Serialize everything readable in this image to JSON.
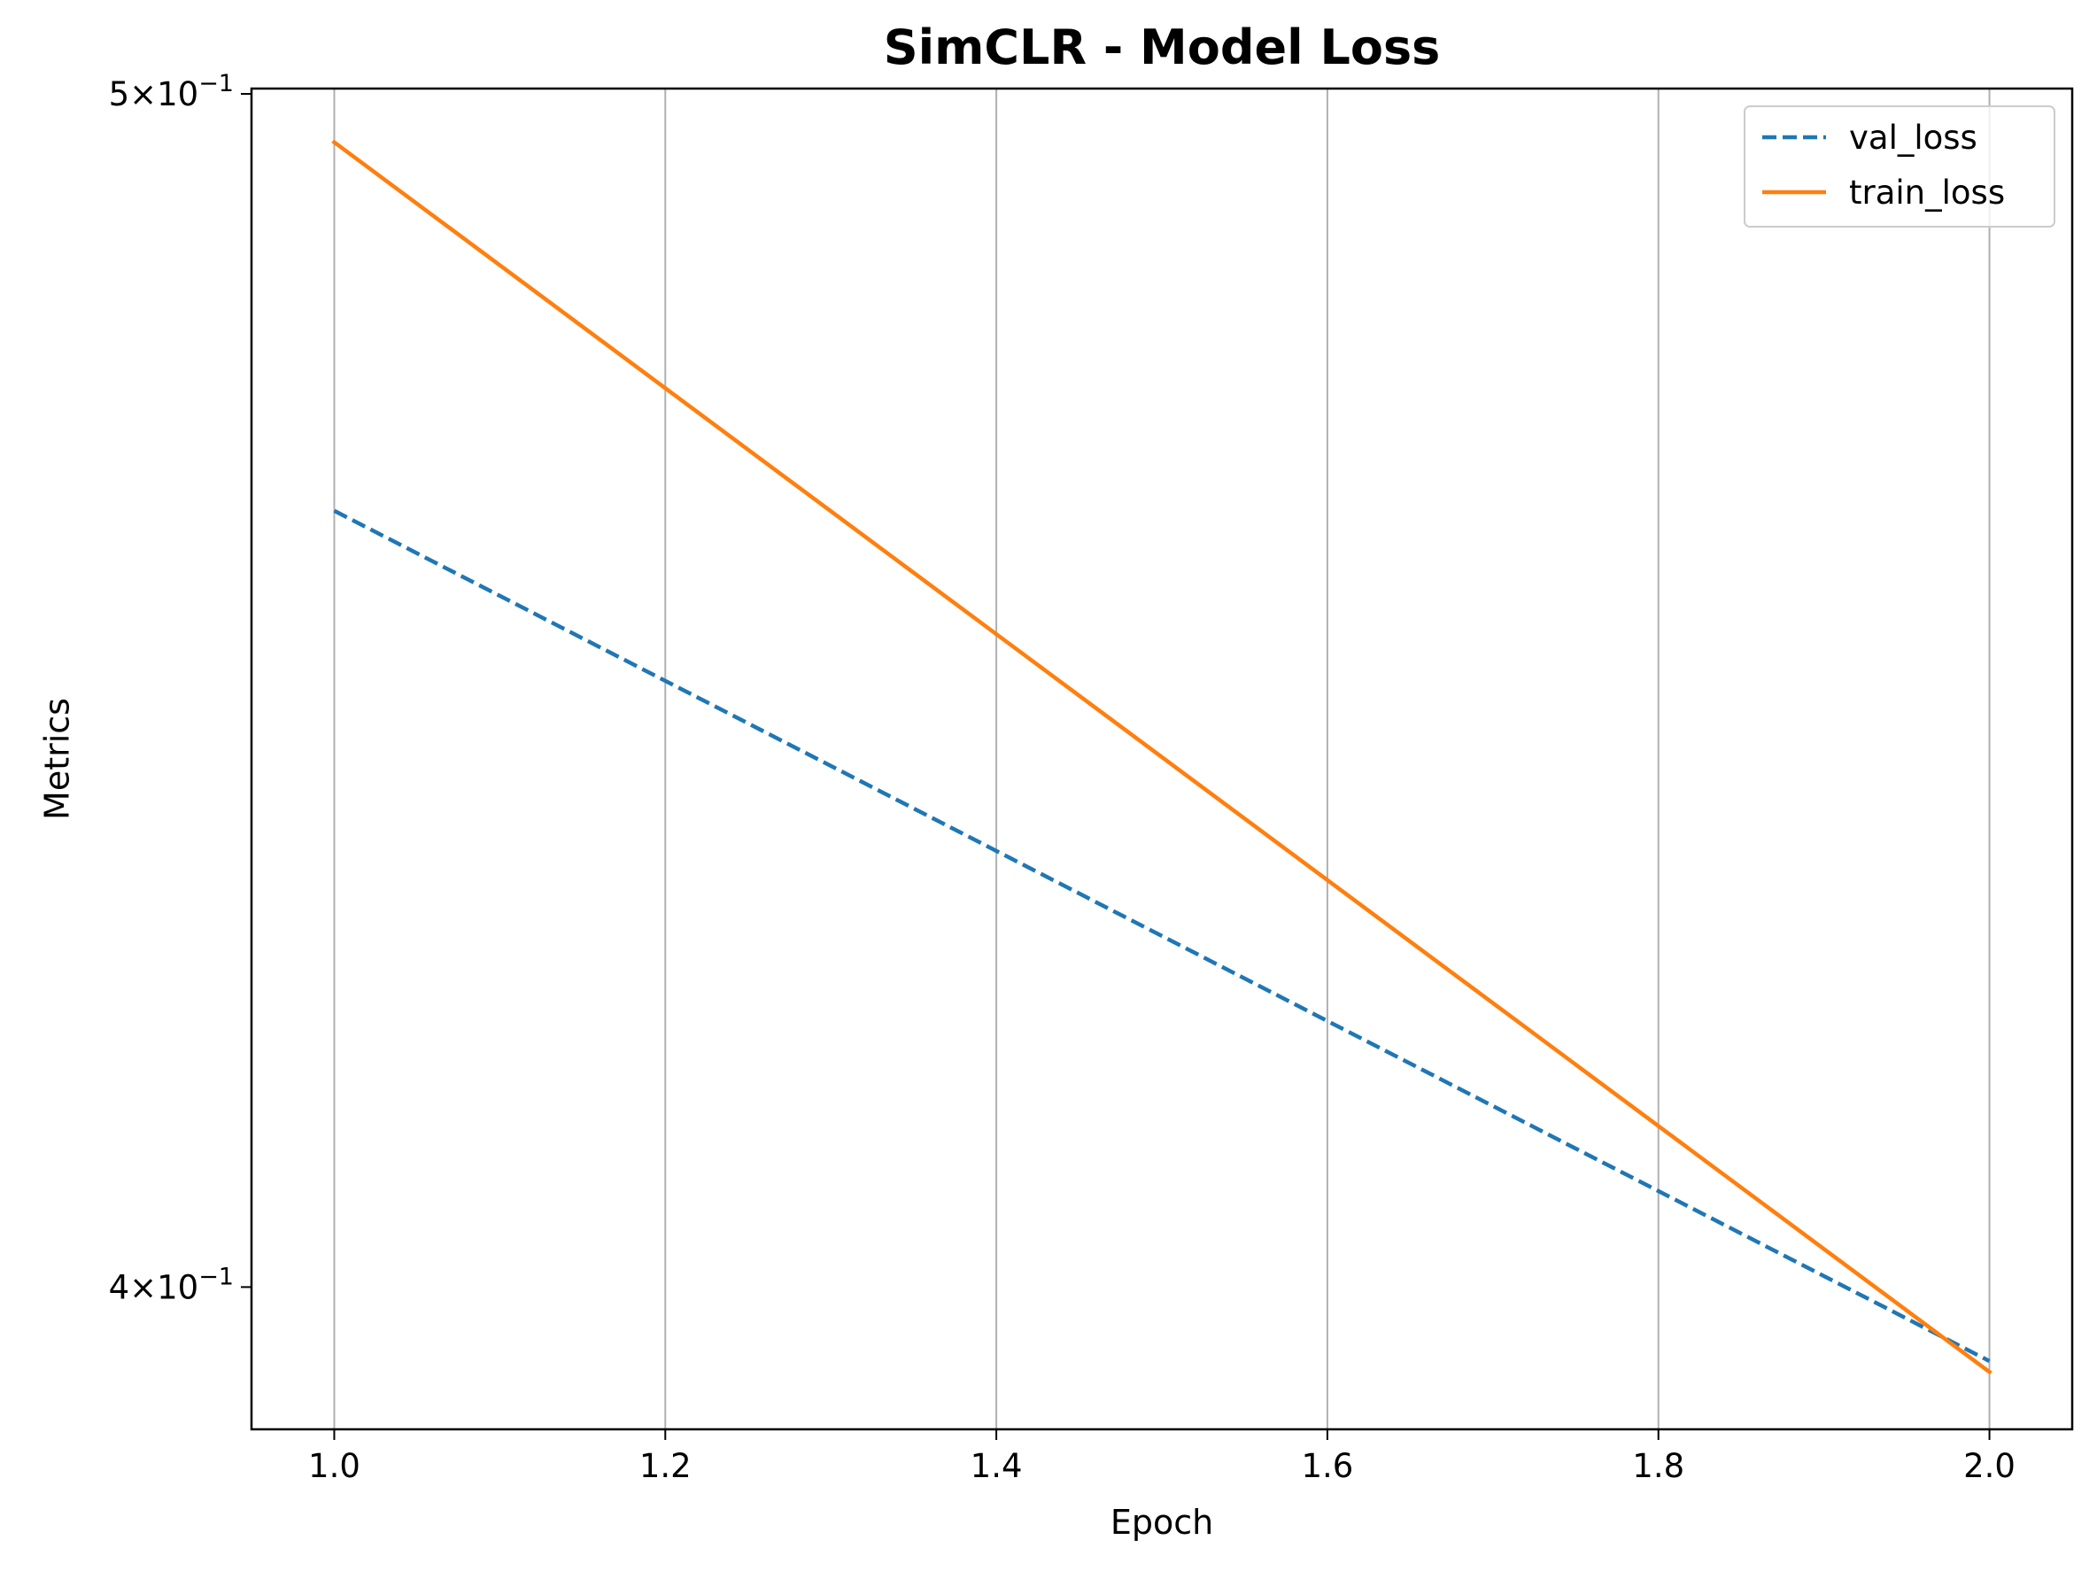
{
  "chart_data": {
    "type": "line",
    "title": "SimCLR - Model Loss",
    "xlabel": "Epoch",
    "ylabel": "Metrics",
    "x_ticks": [
      "1.0",
      "1.2",
      "1.4",
      "1.6",
      "1.8",
      "2.0"
    ],
    "y_ticks": [
      {
        "value": 0.5,
        "mantissa": "5",
        "base": "10",
        "exponent": "−1"
      },
      {
        "value": 0.4,
        "mantissa": "4",
        "base": "10",
        "exponent": "−1"
      }
    ],
    "xlim": [
      0.95,
      2.05
    ],
    "ylim": [
      0.3895,
      0.5005
    ],
    "yscale": "log",
    "grid": "x",
    "legend_position": "upper right",
    "series": [
      {
        "name": "val_loss",
        "x": [
          1.0,
          2.0
        ],
        "y": [
          0.4625,
          0.3945
        ],
        "color": "#1f77b4",
        "style": "dashed"
      },
      {
        "name": "train_loss",
        "x": [
          1.0,
          2.0
        ],
        "y": [
          0.4955,
          0.3937
        ],
        "color": "#ff7f0e",
        "style": "solid"
      }
    ]
  }
}
